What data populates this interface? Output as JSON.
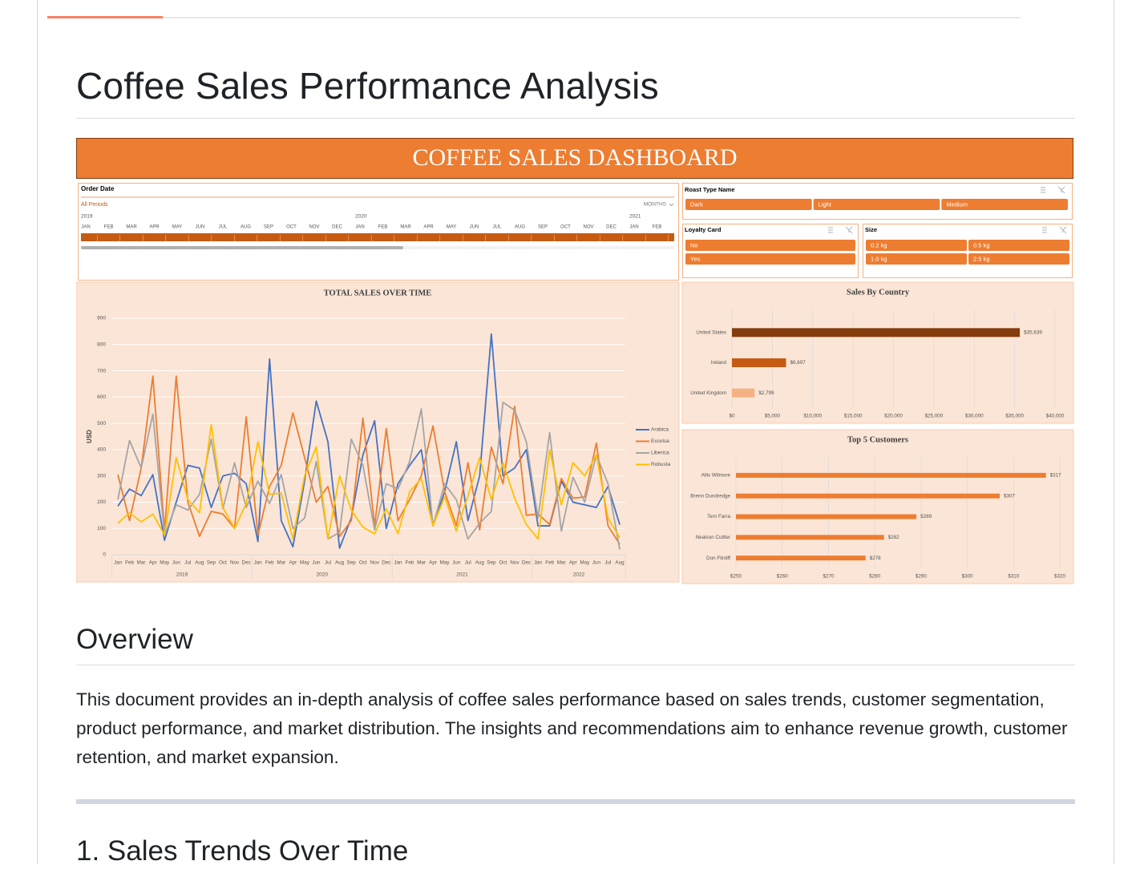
{
  "heading": "Coffee Sales Performance Analysis",
  "dashboard": {
    "title": "COFFEE SALES DASHBOARD",
    "timeline": {
      "label": "Order Date",
      "filter": "All Periods",
      "unit": "MONTHS",
      "years": [
        "2019",
        "2020",
        "2021"
      ],
      "months": [
        "JAN",
        "FEB",
        "MAR",
        "APR",
        "MAY",
        "JUN",
        "JUL",
        "AUG",
        "SEP",
        "OCT",
        "NOV",
        "DEC",
        "JAN",
        "FEB",
        "MAR",
        "APR",
        "MAY",
        "JUN",
        "JUL",
        "AUG",
        "SEP",
        "OCT",
        "NOV",
        "DEC",
        "JAN",
        "FEB"
      ]
    },
    "slicers": [
      {
        "label": "Roast Type Name",
        "items": [
          "Dark",
          "Light",
          "Medium"
        ]
      },
      {
        "label": "Loyalty Card",
        "items": [
          "No",
          "Yes"
        ]
      },
      {
        "label": "Size",
        "items": [
          "0.2 kg",
          "0.5 kg",
          "1.0 kg",
          "2.5 kg"
        ]
      }
    ]
  },
  "chart_data": [
    {
      "type": "line",
      "title": "TOTAL SALES OVER TIME",
      "y_label": "USD",
      "categories": [
        "Jan",
        "Feb",
        "Mar",
        "Apr",
        "May",
        "Jun",
        "Jul",
        "Aug",
        "Sep",
        "Oct",
        "Nov",
        "Dec",
        "Jan",
        "Feb",
        "Mar",
        "Apr",
        "May",
        "Jun",
        "Jul",
        "Aug",
        "Sep",
        "Oct",
        "Nov",
        "Dec",
        "Jan",
        "Feb",
        "Mar",
        "Apr",
        "May",
        "Jun",
        "Jul",
        "Aug",
        "Sep",
        "Oct",
        "Nov",
        "Dec",
        "Jan",
        "Feb",
        "Mar",
        "Apr",
        "May",
        "Jun",
        "Jul",
        "Aug"
      ],
      "groups": [
        "2019",
        "2020",
        "2021",
        "2022"
      ],
      "ylim": [
        0,
        900
      ],
      "yticks": [
        0,
        100,
        200,
        300,
        400,
        500,
        600,
        700,
        800,
        900
      ],
      "grid": true,
      "legend": "right",
      "series": [
        {
          "name": "Arabica",
          "color": "#4472c4",
          "values": [
            185,
            250,
            225,
            305,
            55,
            200,
            340,
            330,
            180,
            300,
            310,
            270,
            50,
            745,
            130,
            30,
            280,
            585,
            430,
            25,
            140,
            380,
            510,
            100,
            270,
            340,
            400,
            110,
            240,
            430,
            130,
            300,
            840,
            300,
            330,
            400,
            110,
            110,
            280,
            200,
            190,
            180,
            260,
            115
          ]
        },
        {
          "name": "Excelsa",
          "color": "#ed7d31",
          "values": [
            305,
            130,
            330,
            680,
            90,
            680,
            200,
            70,
            165,
            155,
            100,
            525,
            75,
            260,
            340,
            540,
            370,
            200,
            260,
            70,
            130,
            520,
            110,
            480,
            130,
            210,
            300,
            490,
            240,
            110,
            350,
            95,
            410,
            270,
            565,
            150,
            155,
            115,
            290,
            215,
            220,
            425,
            110,
            40
          ]
        },
        {
          "name": "Liberica",
          "color": "#a5a5a5",
          "values": [
            210,
            435,
            330,
            535,
            75,
            190,
            170,
            230,
            440,
            175,
            350,
            180,
            280,
            195,
            305,
            100,
            140,
            355,
            60,
            85,
            440,
            340,
            95,
            270,
            250,
            355,
            555,
            110,
            270,
            210,
            60,
            120,
            165,
            580,
            550,
            430,
            140,
            465,
            90,
            295,
            200,
            380,
            270,
            20
          ]
        },
        {
          "name": "Robusta",
          "color": "#ffc000",
          "values": [
            120,
            160,
            125,
            155,
            75,
            370,
            210,
            160,
            495,
            180,
            100,
            195,
            430,
            230,
            235,
            60,
            300,
            410,
            60,
            300,
            170,
            105,
            80,
            175,
            80,
            240,
            290,
            110,
            220,
            90,
            225,
            370,
            210,
            350,
            215,
            115,
            60,
            400,
            190,
            350,
            300,
            380,
            140,
            65
          ]
        }
      ]
    },
    {
      "type": "bar",
      "orientation": "horizontal",
      "title": "Sales By Country",
      "categories": [
        "United States",
        "Ireland",
        "United Kingdom"
      ],
      "values": [
        35639,
        6697,
        2799
      ],
      "value_labels": [
        "$35,639",
        "$6,697",
        "$2,799"
      ],
      "colors": [
        "#843c0c",
        "#c55a11",
        "#f4b183"
      ],
      "xlim": [
        0,
        40000
      ],
      "xticks": [
        {
          "value": 0,
          "label": "$0"
        },
        {
          "value": 5000,
          "label": "$5,000"
        },
        {
          "value": 10000,
          "label": "$10,000"
        },
        {
          "value": 15000,
          "label": "$15,000"
        },
        {
          "value": 20000,
          "label": "$20,000"
        },
        {
          "value": 25000,
          "label": "$25,000"
        },
        {
          "value": 30000,
          "label": "$30,000"
        },
        {
          "value": 35000,
          "label": "$35,000"
        },
        {
          "value": 40000,
          "label": "$40,000"
        }
      ],
      "grid": true
    },
    {
      "type": "bar",
      "orientation": "horizontal",
      "title": "Top 5 Customers",
      "categories": [
        "Allis Wilmore",
        "Brenn Dundredge",
        "Terri Farra",
        "Nealson Cuttler",
        "Don Flintiff"
      ],
      "values": [
        317,
        307,
        289,
        282,
        278
      ],
      "value_labels": [
        "$317",
        "$307",
        "$289",
        "$282",
        "$278"
      ],
      "color": "#ed7d31",
      "xlim": [
        250,
        320
      ],
      "xticks": [
        {
          "value": 250,
          "label": "$250"
        },
        {
          "value": 260,
          "label": "$260"
        },
        {
          "value": 270,
          "label": "$270"
        },
        {
          "value": 280,
          "label": "$280"
        },
        {
          "value": 290,
          "label": "$290"
        },
        {
          "value": 300,
          "label": "$300"
        },
        {
          "value": 310,
          "label": "$310"
        },
        {
          "value": 320,
          "label": "$320"
        }
      ],
      "grid": true
    }
  ],
  "overview": {
    "heading": "Overview",
    "text": "This document provides an in-depth analysis of coffee sales performance based on sales trends, customer segmentation, product performance, and market distribution. The insights and recommendations aim to enhance revenue growth, customer retention, and market expansion."
  },
  "section": {
    "heading": "1. Sales Trends Over Time"
  }
}
